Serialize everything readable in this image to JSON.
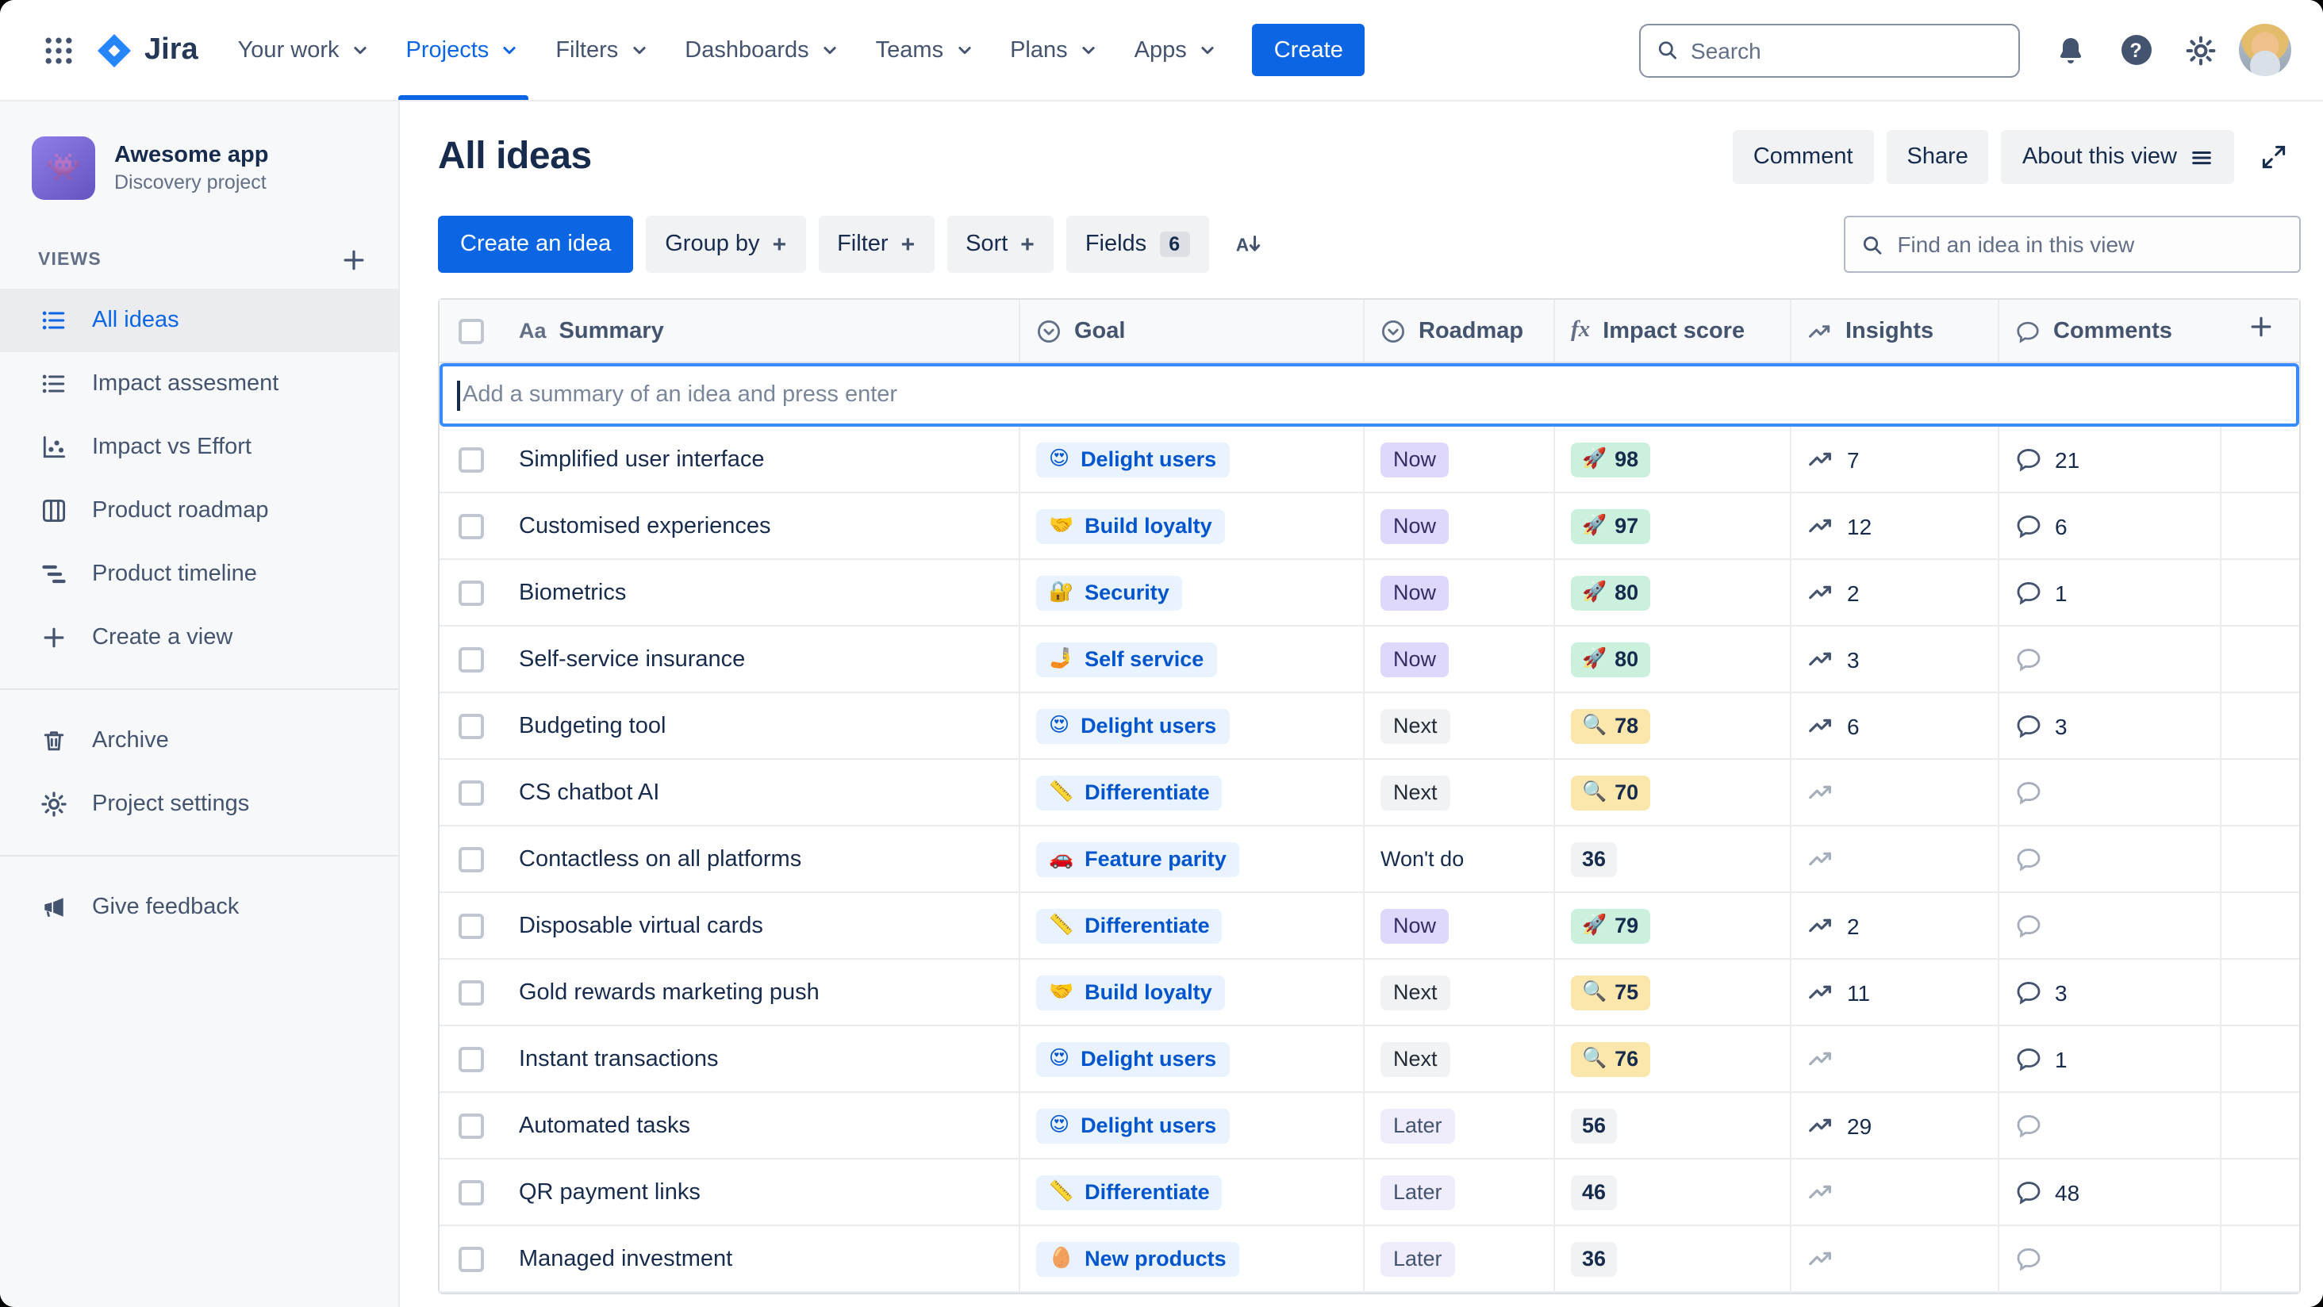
{
  "colors": {
    "accent_blue": "#0C66E4",
    "goal_badge_bg": "#E9F2FF",
    "goal_badge_text": "#0055CC",
    "roadmap_now_bg": "#DFD8FD",
    "roadmap_next_bg": "#F1F2F4",
    "roadmap_later_bg": "#EFEDFC",
    "score_green_bg": "#CBF0DE",
    "score_yellow_bg": "#FBE7AC",
    "score_gray_bg": "#F1F2F4"
  },
  "topnav": {
    "logo": "Jira",
    "menus": [
      {
        "label": "Your work"
      },
      {
        "label": "Projects",
        "active": true
      },
      {
        "label": "Filters"
      },
      {
        "label": "Dashboards"
      },
      {
        "label": "Teams"
      },
      {
        "label": "Plans"
      },
      {
        "label": "Apps"
      }
    ],
    "create_label": "Create",
    "search_placeholder": "Search"
  },
  "sidebar": {
    "project_name": "Awesome app",
    "project_type": "Discovery project",
    "views_label": "VIEWS",
    "views": [
      {
        "label": "All ideas",
        "icon": "list",
        "selected": true
      },
      {
        "label": "Impact assesment",
        "icon": "list"
      },
      {
        "label": "Impact vs Effort",
        "icon": "scatter"
      },
      {
        "label": "Product roadmap",
        "icon": "board"
      },
      {
        "label": "Product timeline",
        "icon": "timeline"
      },
      {
        "label": "Create a view",
        "icon": "plus"
      }
    ],
    "tools": [
      {
        "label": "Archive",
        "icon": "trash"
      },
      {
        "label": "Project settings",
        "icon": "gear"
      }
    ],
    "feedback_label": "Give feedback"
  },
  "view_header": {
    "title": "All ideas",
    "comment_label": "Comment",
    "share_label": "Share",
    "about_label": "About this view"
  },
  "toolbar": {
    "create_idea_label": "Create an idea",
    "group_by_label": "Group by",
    "filter_label": "Filter",
    "sort_label": "Sort",
    "fields_label": "Fields",
    "fields_count": "6",
    "find_placeholder": "Find an idea in this view"
  },
  "table": {
    "add_idea_placeholder": "Add a summary of an idea and press enter",
    "columns": [
      {
        "key": "summary",
        "label": "Summary",
        "icon": "text-type"
      },
      {
        "key": "goal",
        "label": "Goal",
        "icon": "select"
      },
      {
        "key": "roadmap",
        "label": "Roadmap",
        "icon": "select"
      },
      {
        "key": "impact",
        "label": "Impact score",
        "icon": "formula"
      },
      {
        "key": "insights",
        "label": "Insights",
        "icon": "trend"
      },
      {
        "key": "comments",
        "label": "Comments",
        "icon": "comment"
      }
    ],
    "rows": [
      {
        "summary": "Simplified user interface",
        "goal_emoji": "😍",
        "goal": "Delight users",
        "roadmap": "Now",
        "roadmap_style": "now",
        "score_emoji": "🚀",
        "score": "98",
        "score_style": "green",
        "insights": "7",
        "comments": "21"
      },
      {
        "summary": "Customised experiences",
        "goal_emoji": "🤝",
        "goal": "Build loyalty",
        "roadmap": "Now",
        "roadmap_style": "now",
        "score_emoji": "🚀",
        "score": "97",
        "score_style": "green",
        "insights": "12",
        "comments": "6"
      },
      {
        "summary": "Biometrics",
        "goal_emoji": "🔐",
        "goal": "Security",
        "roadmap": "Now",
        "roadmap_style": "now",
        "score_emoji": "🚀",
        "score": "80",
        "score_style": "green",
        "insights": "2",
        "comments": "1"
      },
      {
        "summary": "Self-service insurance",
        "goal_emoji": "🤳",
        "goal": "Self service",
        "roadmap": "Now",
        "roadmap_style": "now",
        "score_emoji": "🚀",
        "score": "80",
        "score_style": "green",
        "insights": "3",
        "comments": ""
      },
      {
        "summary": "Budgeting tool",
        "goal_emoji": "😍",
        "goal": "Delight users",
        "roadmap": "Next",
        "roadmap_style": "next",
        "score_emoji": "🔍",
        "score": "78",
        "score_style": "yellow",
        "insights": "6",
        "comments": "3"
      },
      {
        "summary": "CS chatbot AI",
        "goal_emoji": "📏",
        "goal": "Differentiate",
        "roadmap": "Next",
        "roadmap_style": "next",
        "score_emoji": "🔍",
        "score": "70",
        "score_style": "yellow",
        "insights": "",
        "comments": ""
      },
      {
        "summary": "Contactless on all platforms",
        "goal_emoji": "🚗",
        "goal": "Feature parity",
        "roadmap": "Won't do",
        "roadmap_style": "none",
        "score_emoji": "",
        "score": "36",
        "score_style": "gray",
        "insights": "",
        "comments": ""
      },
      {
        "summary": "Disposable virtual cards",
        "goal_emoji": "📏",
        "goal": "Differentiate",
        "roadmap": "Now",
        "roadmap_style": "now",
        "score_emoji": "🚀",
        "score": "79",
        "score_style": "green",
        "insights": "2",
        "comments": ""
      },
      {
        "summary": "Gold rewards marketing push",
        "goal_emoji": "🤝",
        "goal": "Build loyalty",
        "roadmap": "Next",
        "roadmap_style": "next",
        "score_emoji": "🔍",
        "score": "75",
        "score_style": "yellow",
        "insights": "11",
        "comments": "3"
      },
      {
        "summary": "Instant transactions",
        "goal_emoji": "😍",
        "goal": "Delight users",
        "roadmap": "Next",
        "roadmap_style": "next",
        "score_emoji": "🔍",
        "score": "76",
        "score_style": "yellow",
        "insights": "",
        "comments": "1"
      },
      {
        "summary": "Automated tasks",
        "goal_emoji": "😍",
        "goal": "Delight users",
        "roadmap": "Later",
        "roadmap_style": "later",
        "score_emoji": "",
        "score": "56",
        "score_style": "gray",
        "insights": "29",
        "comments": ""
      },
      {
        "summary": "QR payment links",
        "goal_emoji": "📏",
        "goal": "Differentiate",
        "roadmap": "Later",
        "roadmap_style": "later",
        "score_emoji": "",
        "score": "46",
        "score_style": "gray",
        "insights": "",
        "comments": "48"
      },
      {
        "summary": "Managed investment",
        "goal_emoji": "🥚",
        "goal": "New products",
        "roadmap": "Later",
        "roadmap_style": "later",
        "score_emoji": "",
        "score": "36",
        "score_style": "gray",
        "insights": "",
        "comments": ""
      }
    ]
  }
}
